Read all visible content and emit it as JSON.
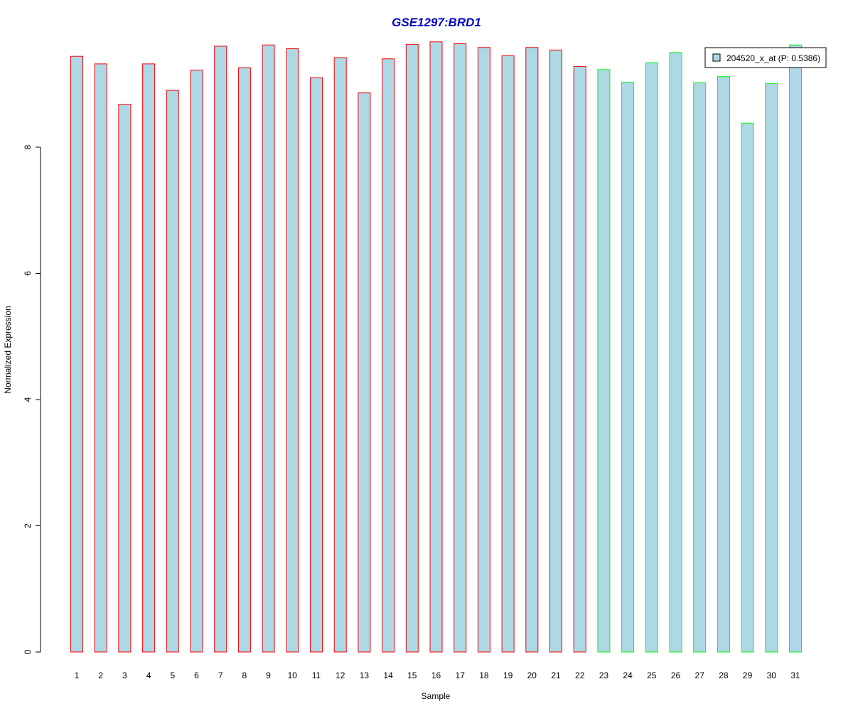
{
  "chart_data": {
    "type": "bar",
    "title": "GSE1297:BRD1",
    "xlabel": "Sample",
    "ylabel": "Normalized Expression",
    "categories": [
      "1",
      "2",
      "3",
      "4",
      "5",
      "6",
      "7",
      "8",
      "9",
      "10",
      "11",
      "12",
      "13",
      "14",
      "15",
      "16",
      "17",
      "18",
      "19",
      "20",
      "21",
      "22",
      "23",
      "24",
      "25",
      "26",
      "27",
      "28",
      "29",
      "30",
      "31"
    ],
    "series": [
      {
        "name": "204520_x_at (P: 0.5386)",
        "values": [
          9.44,
          9.32,
          8.68,
          9.32,
          8.9,
          9.22,
          9.6,
          9.26,
          9.62,
          9.56,
          9.1,
          9.42,
          8.86,
          9.4,
          9.63,
          9.67,
          9.64,
          9.58,
          9.45,
          9.58,
          9.54,
          9.28,
          9.23,
          9.03,
          9.34,
          9.5,
          9.02,
          9.12,
          8.38,
          9.01,
          9.62
        ],
        "group_border": [
          "red",
          "red",
          "red",
          "red",
          "red",
          "red",
          "red",
          "red",
          "red",
          "red",
          "red",
          "red",
          "red",
          "red",
          "red",
          "red",
          "red",
          "red",
          "red",
          "red",
          "red",
          "red",
          "green",
          "green",
          "green",
          "green",
          "green",
          "green",
          "green",
          "green",
          "green"
        ]
      }
    ],
    "yticks": [
      0,
      2,
      4,
      6,
      8
    ],
    "ylim": [
      0,
      9.7
    ],
    "grid": false,
    "legend_position": "top-right",
    "colors": {
      "bar_fill": "#add8e6",
      "border_group1": "#ff0000",
      "border_group2": "#00ff00",
      "title": "#0000cc"
    }
  }
}
